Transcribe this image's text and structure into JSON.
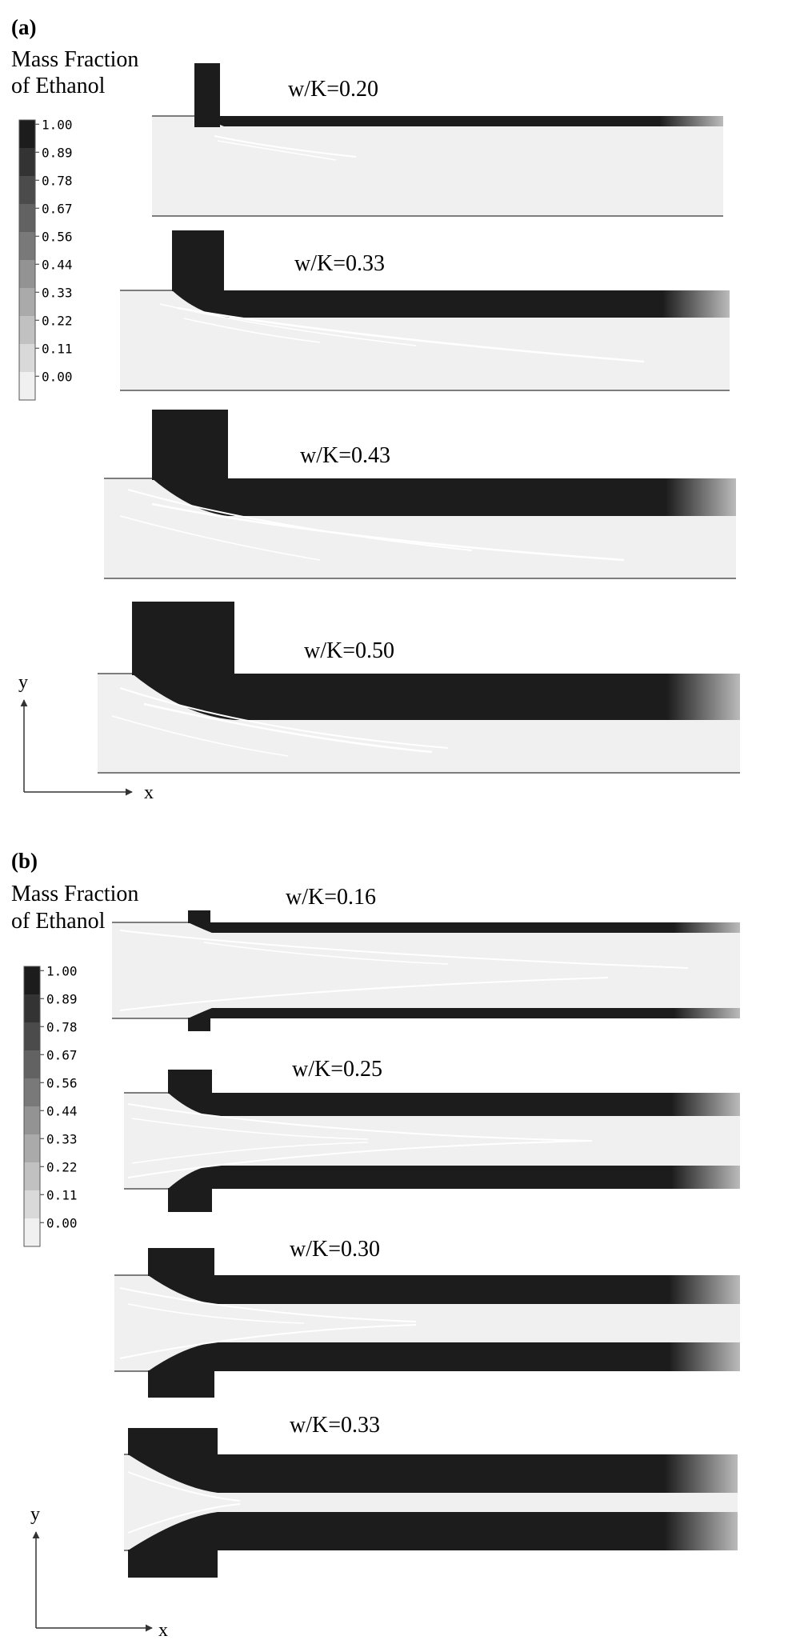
{
  "panels": [
    {
      "label": "(a)",
      "legend_title": [
        "Mass Fraction",
        "of Ethanol"
      ],
      "cases": [
        {
          "label": "w/K=0.20",
          "ratio": 0.2
        },
        {
          "label": "w/K=0.33",
          "ratio": 0.33
        },
        {
          "label": "w/K=0.43",
          "ratio": 0.43
        },
        {
          "label": "w/K=0.50",
          "ratio": 0.5
        }
      ],
      "axis_labels": {
        "y": "y",
        "x": "x"
      }
    },
    {
      "label": "(b)",
      "legend_title": [
        "Mass Fraction",
        "of Ethanol"
      ],
      "cases": [
        {
          "label": "w/K=0.16",
          "ratio": 0.16
        },
        {
          "label": "w/K=0.25",
          "ratio": 0.25
        },
        {
          "label": "w/K=0.30",
          "ratio": 0.3
        },
        {
          "label": "w/K=0.33",
          "ratio": 0.33
        }
      ],
      "axis_labels": {
        "y": "y",
        "x": "x"
      }
    }
  ],
  "scale_ticks": [
    "1.00",
    "0.89",
    "0.78",
    "0.67",
    "0.56",
    "0.44",
    "0.33",
    "0.22",
    "0.11",
    "0.00"
  ],
  "colors": {
    "ethanol": "#1c1c1c",
    "water": "#f0f0f0",
    "border": "#555555",
    "streak": "#ffffff"
  }
}
